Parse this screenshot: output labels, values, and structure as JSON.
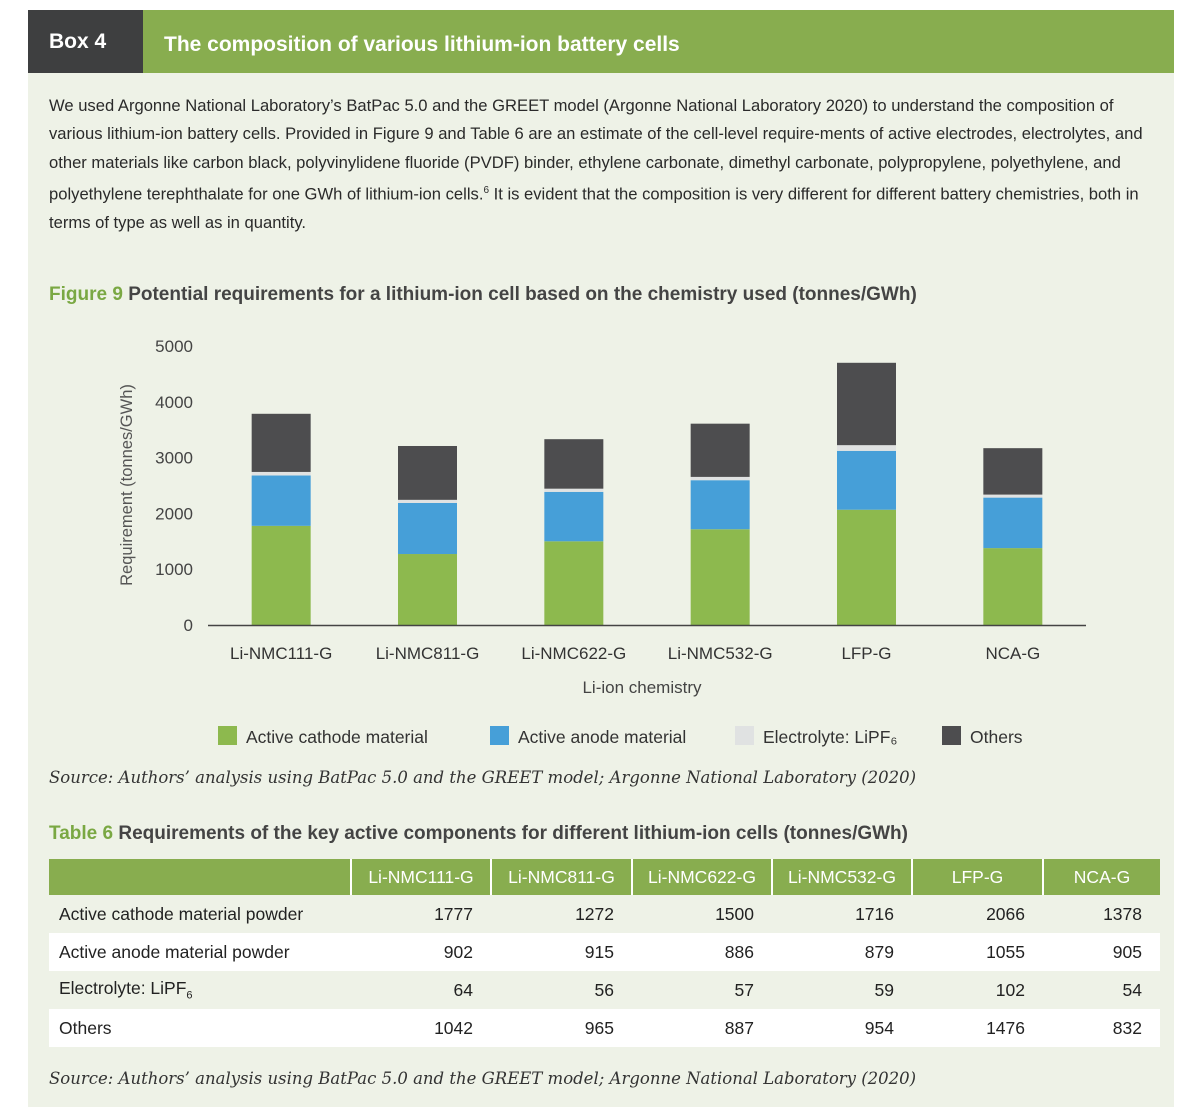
{
  "box": {
    "tag": "Box 4",
    "title": "The composition of various lithium-ion battery cells",
    "intro": "We used Argonne National Laboratory’s BatPac 5.0 and the GREET model (Argonne National Laboratory 2020) to understand the composition of various lithium-ion battery cells. Provided in Figure 9 and Table 6 are an estimate of the cell-level require-ments of active electrodes, electrolytes, and other materials like carbon black, polyvinylidene fluoride (PVDF) binder, ethylene carbonate, dimethyl carbonate, polypropylene, polyethylene, and polyethylene terephthalate for one GWh of lithium-ion cells.",
    "intro_footnote": "6",
    "intro_end": " It is evident that the composition is very different for different battery chemistries, both in terms of type as well as in quantity."
  },
  "figure": {
    "label": "Figure 9",
    "title": "Potential requirements for a lithium-ion cell based on the chemistry used (tonnes/GWh)",
    "source": "Source: Authors’ analysis using BatPac 5.0 and the GREET model; Argonne National Laboratory (2020)"
  },
  "chart_data": {
    "type": "bar",
    "stacked": true,
    "categories": [
      "Li-NMC111-G",
      "Li-NMC811-G",
      "Li-NMC622-G",
      "Li-NMC532-G",
      "LFP-G",
      "NCA-G"
    ],
    "series": [
      {
        "name": "Active cathode material",
        "color": "#8db94e",
        "values": [
          1777,
          1272,
          1500,
          1716,
          2066,
          1378
        ]
      },
      {
        "name": "Active anode material",
        "color": "#469fd8",
        "values": [
          902,
          915,
          886,
          879,
          1055,
          905
        ]
      },
      {
        "name": "Electrolyte: LiPF₆",
        "color": "#e0e2e2",
        "values": [
          64,
          56,
          57,
          59,
          102,
          54
        ]
      },
      {
        "name": "Others",
        "color": "#4d4d4f",
        "values": [
          1042,
          965,
          887,
          954,
          1476,
          832
        ]
      }
    ],
    "xlabel": "Li-ion chemistry",
    "ylabel": "Requirement (tonnes/GWh)",
    "ylim": [
      0,
      5000
    ],
    "yticks": [
      "0",
      "1000",
      "2000",
      "3000",
      "4000",
      "5000"
    ],
    "grid": false,
    "legend_position": "bottom"
  },
  "table": {
    "label": "Table 6",
    "title": "Requirements of the key active components for different lithium-ion cells (tonnes/GWh)",
    "headers": [
      "Li-NMC111-G",
      "Li-NMC811-G",
      "Li-NMC622-G",
      "Li-NMC532-G",
      "LFP-G",
      "NCA-G"
    ],
    "rows": [
      {
        "label": "Active cathode material powder",
        "values": [
          "1777",
          "1272",
          "1500",
          "1716",
          "2066",
          "1378"
        ]
      },
      {
        "label": "Active anode material powder",
        "values": [
          "902",
          "915",
          "886",
          "879",
          "1055",
          "905"
        ]
      },
      {
        "label": "Electrolyte: LiPF",
        "sub": "6",
        "values": [
          "64",
          "56",
          "57",
          "59",
          "102",
          "54"
        ]
      },
      {
        "label": "Others",
        "values": [
          "1042",
          "965",
          "887",
          "954",
          "1476",
          "832"
        ]
      }
    ],
    "source": "Source: Authors’ analysis using BatPac 5.0 and the GREET model; Argonne National Laboratory (2020)"
  }
}
